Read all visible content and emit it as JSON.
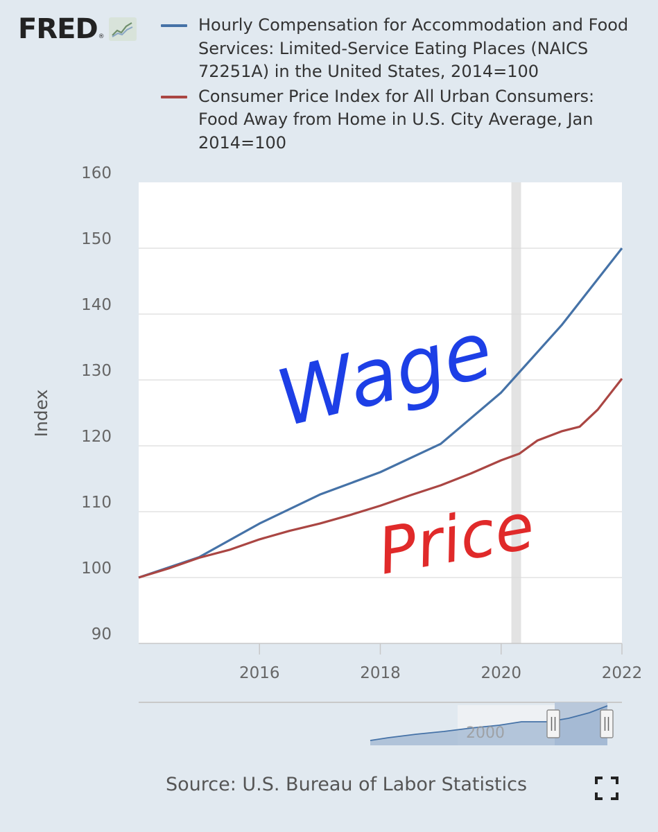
{
  "brand": {
    "logo_text": "FRED",
    "registered": "®",
    "badge_icon": "line-chart-icon"
  },
  "legend": [
    {
      "label": "Hourly Compensation for Accommodation and Food Services: Limited-Service Eating Places (NAICS 72251A) in the United States, 2014=100",
      "color": "#4572a7"
    },
    {
      "label": "Consumer Price Index for All Urban Consumers: Food Away from Home in U.S. City Average, Jan 2014=100",
      "color": "#aa4643"
    }
  ],
  "source": "Source: U.S. Bureau of Labor Statistics",
  "fullscreen_icon": "fullscreen-icon",
  "annotations": [
    {
      "text": "Wage",
      "color": "#1d3fe6"
    },
    {
      "text": "Price",
      "color": "#e02a2a"
    }
  ],
  "navigator": {
    "label": "2000"
  },
  "chart_data": {
    "type": "line",
    "xlabel": "",
    "ylabel": "Index",
    "xlim": [
      2014,
      2022
    ],
    "ylim": [
      90,
      160
    ],
    "x_ticks": [
      "2016",
      "2018",
      "2020",
      "2022"
    ],
    "y_ticks": [
      "90",
      "100",
      "110",
      "120",
      "130",
      "140",
      "150",
      "160"
    ],
    "grid": true,
    "recession_band": [
      2020.17,
      2020.33
    ],
    "legend_position": "top",
    "series": [
      {
        "name": "Hourly Compensation for Accommodation and Food Services: Limited-Service Eating Places (NAICS 72251A) in the United States, 2014=100",
        "color": "#4572a7",
        "x": [
          2014,
          2015,
          2016,
          2017,
          2018,
          2019,
          2020,
          2021,
          2022
        ],
        "y": [
          100,
          103.1,
          108.2,
          112.6,
          116.0,
          120.3,
          128.1,
          138.3,
          150.0
        ]
      },
      {
        "name": "Consumer Price Index for All Urban Consumers: Food Away from Home in U.S. City Average, Jan 2014=100",
        "color": "#aa4643",
        "x": [
          2014,
          2014.5,
          2015,
          2015.5,
          2016,
          2016.5,
          2017,
          2017.5,
          2018,
          2018.5,
          2019,
          2019.5,
          2020,
          2020.3,
          2020.6,
          2021,
          2021.3,
          2021.6,
          2022
        ],
        "y": [
          100,
          101.4,
          103.0,
          104.2,
          105.8,
          107.1,
          108.2,
          109.5,
          110.9,
          112.5,
          114.0,
          115.8,
          117.8,
          118.8,
          120.8,
          122.2,
          122.9,
          125.5,
          130.2
        ]
      }
    ]
  }
}
